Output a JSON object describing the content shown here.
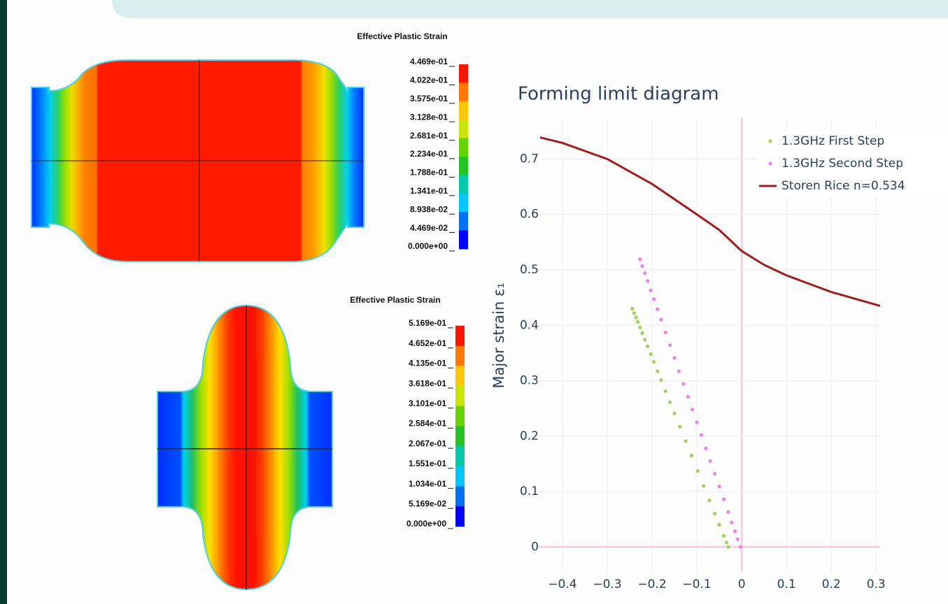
{
  "simulations": [
    {
      "title": "Effective Plastic Strain",
      "labels": [
        "4.469e-01",
        "4.022e-01",
        "3.575e-01",
        "3.128e-01",
        "2.681e-01",
        "2.234e-01",
        "1.788e-01",
        "1.341e-01",
        "8.938e-02",
        "4.469e-02",
        "0.000e+00"
      ]
    },
    {
      "title": "Effective Plastic Strain",
      "labels": [
        "5.169e-01",
        "4.652e-01",
        "4.135e-01",
        "3.618e-01",
        "3.101e-01",
        "2.584e-01",
        "2.067e-01",
        "1.551e-01",
        "1.034e-01",
        "5.169e-02",
        "0.000e+00"
      ]
    }
  ],
  "chart_data": {
    "type": "scatter",
    "title": "Forming limit diagram",
    "y_label": "Major strain ε₁",
    "xlim": [
      -0.453,
      0.309
    ],
    "ylim": [
      -0.045,
      0.775
    ],
    "xticks": [
      {
        "value": -0.4,
        "label": "−0.4"
      },
      {
        "value": -0.3,
        "label": "−0.3"
      },
      {
        "value": -0.2,
        "label": "−0.2"
      },
      {
        "value": -0.1,
        "label": "−0.1"
      },
      0,
      0.1,
      0.2,
      0.3
    ],
    "yticks": [
      0,
      0.1,
      0.2,
      0.3,
      0.4,
      0.5,
      0.6,
      0.7
    ],
    "grid": true,
    "series": [
      {
        "name": "1.3GHz First Step",
        "color": "#9ed25a",
        "mode": "markers",
        "x": [
          -0.244,
          -0.24,
          -0.236,
          -0.232,
          -0.227,
          -0.222,
          -0.216,
          -0.21,
          -0.203,
          -0.196,
          -0.188,
          -0.18,
          -0.17,
          -0.16,
          -0.15,
          -0.138,
          -0.125,
          -0.112,
          -0.098,
          -0.085,
          -0.072,
          -0.06,
          -0.05,
          -0.04,
          -0.034,
          -0.03
        ],
        "values": [
          0.43,
          0.422,
          0.414,
          0.406,
          0.396,
          0.386,
          0.374,
          0.362,
          0.348,
          0.334,
          0.317,
          0.301,
          0.281,
          0.261,
          0.241,
          0.217,
          0.191,
          0.165,
          0.137,
          0.11,
          0.084,
          0.06,
          0.04,
          0.02,
          0.008,
          0
        ]
      },
      {
        "name": "1.3GHz Second Step",
        "color": "#f07ef0",
        "mode": "markers",
        "x": [
          -0.227,
          -0.222,
          -0.216,
          -0.21,
          -0.203,
          -0.196,
          -0.188,
          -0.18,
          -0.17,
          -0.16,
          -0.15,
          -0.14,
          -0.13,
          -0.12,
          -0.11,
          -0.1,
          -0.09,
          -0.08,
          -0.07,
          -0.06,
          -0.05,
          -0.04,
          -0.03,
          -0.022,
          -0.015,
          -0.009,
          -0.003
        ],
        "values": [
          0.519,
          0.507,
          0.494,
          0.48,
          0.463,
          0.447,
          0.429,
          0.41,
          0.387,
          0.364,
          0.341,
          0.317,
          0.294,
          0.271,
          0.248,
          0.225,
          0.202,
          0.178,
          0.155,
          0.132,
          0.109,
          0.086,
          0.063,
          0.044,
          0.028,
          0.014,
          0
        ]
      },
      {
        "name": "Storen Rice n=0.534",
        "color": "#a31b1b",
        "mode": "lines",
        "x": [
          -0.45,
          -0.4,
          -0.3,
          -0.2,
          -0.1,
          -0.05,
          0,
          0.05,
          0.1,
          0.2,
          0.309
        ],
        "values": [
          0.739,
          0.729,
          0.7,
          0.655,
          0.6,
          0.572,
          0.534,
          0.509,
          0.49,
          0.46,
          0.435
        ]
      }
    ]
  }
}
